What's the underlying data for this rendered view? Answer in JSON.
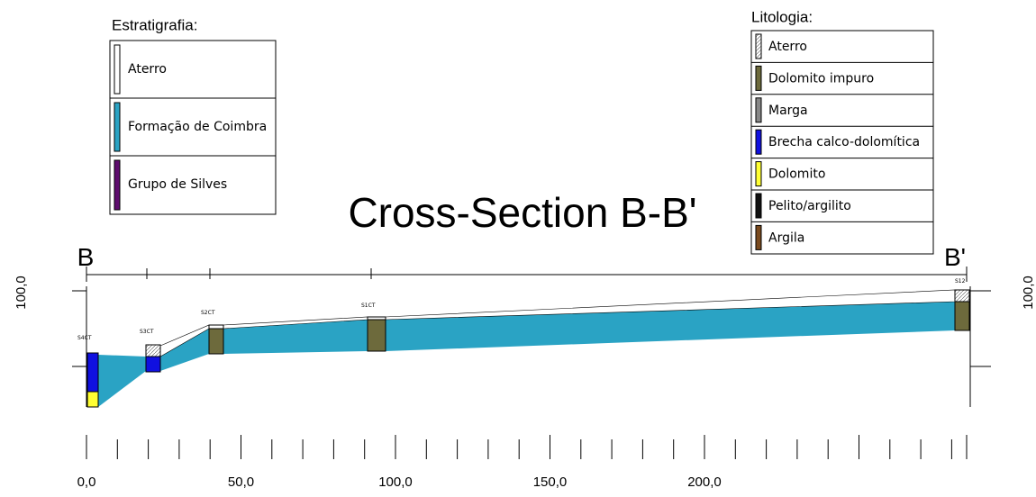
{
  "title": "Cross-Section B-B'",
  "section_start": "B",
  "section_end": "B'",
  "stratigraphy": {
    "title": "Estratigrafia:",
    "items": [
      {
        "label": "Aterro"
      },
      {
        "label": "Formação de Coimbra"
      },
      {
        "label": "Grupo de Silves"
      }
    ]
  },
  "lithology": {
    "title": "Litologia:",
    "items": [
      {
        "label": "Aterro"
      },
      {
        "label": "Dolomito impuro"
      },
      {
        "label": "Marga"
      },
      {
        "label": "Brecha calco-dolomítica"
      },
      {
        "label": "Dolomito"
      },
      {
        "label": "Pelito/argilito"
      },
      {
        "label": "Argila"
      }
    ]
  },
  "boreholes": [
    "S4CT",
    "S3CT",
    "S2CT",
    "S1CT",
    "S12"
  ],
  "x_axis": {
    "labels": [
      "0,0",
      "50,0",
      "100,0",
      "150,0",
      "200,0"
    ]
  },
  "y_axis": {
    "left_label": "100,0",
    "right_label": "100,0"
  }
}
